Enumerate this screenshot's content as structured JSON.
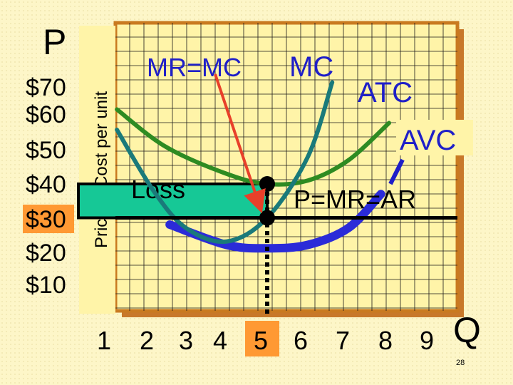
{
  "chart_data": {
    "type": "line",
    "y_axis_letter": "P",
    "x_axis_letter": "Q",
    "ylabel": "Price & Cost per unit",
    "y_ticks": [
      "$70",
      "$60",
      "$50",
      "$40",
      "$30",
      "$20",
      "$10"
    ],
    "x_ticks": [
      "1",
      "2",
      "3",
      "4",
      "5",
      "6",
      "7",
      "8",
      "9"
    ],
    "highlighted_y_tick": "$30",
    "highlighted_x_tick": "5",
    "price": 30,
    "optimal_quantity": 5,
    "atc_at_optimum": 40,
    "annotations": {
      "mr_mc": "MR=MC",
      "mc": "MC",
      "atc": "ATC",
      "avc": "AVC",
      "loss": "Loss",
      "demand": "P=MR=AR"
    },
    "series": [
      {
        "name": "MC",
        "x": [
          1.3,
          2.2,
          3.0,
          4.0,
          5.0,
          6.0,
          6.6
        ],
        "y": [
          56,
          38,
          27,
          23,
          30,
          48,
          70
        ]
      },
      {
        "name": "ATC",
        "x": [
          1.3,
          2.5,
          4.0,
          5.0,
          6.0,
          7.0,
          8.0
        ],
        "y": [
          62,
          51,
          43,
          40,
          41,
          47,
          58
        ]
      },
      {
        "name": "AVC",
        "x": [
          2.6,
          4.0,
          5.0,
          6.0,
          7.0,
          7.8
        ],
        "y": [
          28,
          22,
          21,
          22,
          27,
          37
        ]
      }
    ],
    "colors": {
      "MC": "#1a7a7a",
      "ATC": "#2e8b22",
      "AVC": "#2b2bd8",
      "arrow": "#e8402a",
      "loss_fill": "#16c896",
      "label_blue": "#1f1fc8",
      "highlight": "#ff9933"
    },
    "slide_number": "28"
  }
}
